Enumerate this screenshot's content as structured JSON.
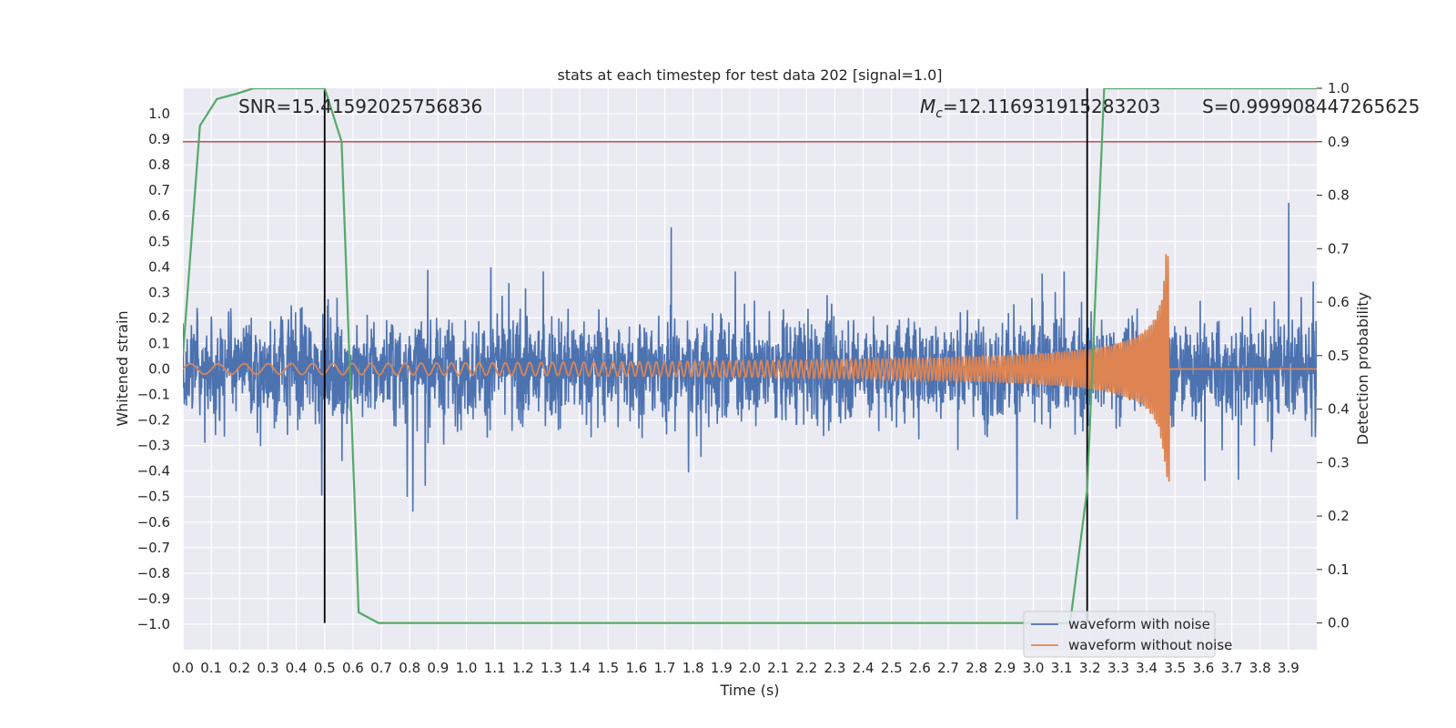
{
  "chart_data": {
    "type": "line",
    "title": "stats at each timestep for test data 202 [signal=1.0]",
    "xlabel": "Time (s)",
    "ylabel": "Whitened strain",
    "y2label": "Detection probability",
    "xlim": [
      0.0,
      4.0
    ],
    "ylim": [
      -1.1,
      1.1
    ],
    "y2lim": [
      -0.05,
      1.0
    ],
    "x_ticks": [
      "0.0",
      "0.1",
      "0.2",
      "0.3",
      "0.4",
      "0.5",
      "0.6",
      "0.7",
      "0.8",
      "0.9",
      "1.0",
      "1.1",
      "1.2",
      "1.3",
      "1.4",
      "1.5",
      "1.6",
      "1.7",
      "1.8",
      "1.9",
      "2.0",
      "2.1",
      "2.2",
      "2.3",
      "2.4",
      "2.5",
      "2.6",
      "2.7",
      "2.8",
      "2.9",
      "3.0",
      "3.1",
      "3.2",
      "3.3",
      "3.4",
      "3.5",
      "3.6",
      "3.7",
      "3.8",
      "3.9"
    ],
    "y_ticks": [
      "1.0",
      "0.9",
      "0.8",
      "0.7",
      "0.6",
      "0.5",
      "0.4",
      "0.3",
      "0.2",
      "0.1",
      "0.0",
      "−0.1",
      "−0.2",
      "−0.3",
      "−0.4",
      "−0.5",
      "−0.6",
      "−0.7",
      "−0.8",
      "−0.9",
      "−1.0"
    ],
    "y2_ticks": [
      "1.0",
      "0.9",
      "0.8",
      "0.7",
      "0.6",
      "0.5",
      "0.4",
      "0.3",
      "0.2",
      "0.1",
      "0.0"
    ],
    "annotations": {
      "snr": "SNR=15.41592025756836",
      "mc_symbol": "M",
      "mc_sub": "c",
      "mc_value": "=12.116931915283203",
      "s": "S=0.999908447265625"
    },
    "threshold": {
      "value": 0.9,
      "axis": "y2",
      "color": "#c44e52"
    },
    "vlines": [
      0.5,
      3.19
    ],
    "series": [
      {
        "name": "waveform with noise",
        "color": "#4c72b0",
        "kind": "noise",
        "peak_envelope": 0.45,
        "max_value": 1.0,
        "min_value": -1.0
      },
      {
        "name": "waveform without noise",
        "color": "#dd8452",
        "kind": "chirp",
        "start_amplitude": 0.02,
        "end_amplitude": 0.45,
        "merger_time": 3.48
      },
      {
        "name": "detection probability",
        "color": "#55a868",
        "axis": "y2",
        "x": [
          0.0,
          0.06,
          0.12,
          0.19,
          0.25,
          0.31,
          0.37,
          0.44,
          0.5,
          0.56,
          0.62,
          0.69,
          0.75,
          0.81,
          1.0,
          1.5,
          2.0,
          2.1,
          2.5,
          3.0,
          3.13,
          3.19,
          3.25,
          3.31,
          3.5,
          4.0
        ],
        "y": [
          0.5,
          0.93,
          0.98,
          0.99,
          1.0,
          1.0,
          1.0,
          1.0,
          1.0,
          0.9,
          0.02,
          0.0,
          0.0,
          0.0,
          0.0,
          0.0,
          0.0,
          0.0,
          0.0,
          0.0,
          0.0,
          0.25,
          1.0,
          1.0,
          1.0,
          1.0
        ]
      }
    ],
    "legend": {
      "placement": "lower-right",
      "entries": [
        "waveform with noise",
        "waveform without noise"
      ]
    },
    "grid": true
  }
}
